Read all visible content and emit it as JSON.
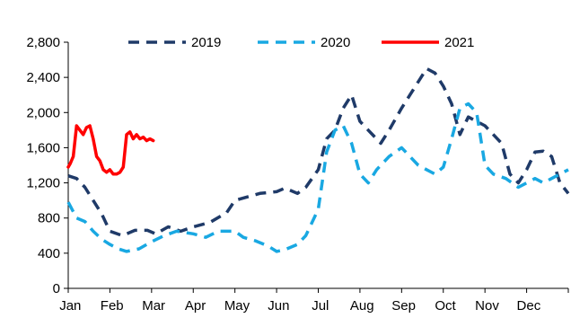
{
  "chart_data": {
    "type": "line",
    "title": "",
    "xlabel": "",
    "ylabel": "",
    "ylim": [
      0,
      2800
    ],
    "yticks": [
      0,
      400,
      800,
      1200,
      1600,
      2000,
      2400,
      2800
    ],
    "ytick_labels": [
      "0",
      "400",
      "800",
      "1,200",
      "1,600",
      "2,000",
      "2,400",
      "2,800"
    ],
    "xlim": [
      0,
      12
    ],
    "month_labels": [
      "Jan",
      "Feb",
      "Mar",
      "Apr",
      "May",
      "Jun",
      "Jul",
      "Aug",
      "Sep",
      "Oct",
      "Nov",
      "Dec"
    ],
    "grid": false,
    "legend_position": "top",
    "series": [
      {
        "name": "2019",
        "color": "#1f3a68",
        "style": "dashed",
        "x": [
          0.0,
          0.2,
          0.4,
          0.6,
          0.8,
          1.0,
          1.3,
          1.6,
          1.9,
          2.1,
          2.4,
          2.7,
          3.0,
          3.4,
          3.8,
          4.0,
          4.3,
          4.6,
          5.0,
          5.2,
          5.5,
          5.7,
          6.0,
          6.2,
          6.4,
          6.6,
          6.8,
          7.0,
          7.2,
          7.5,
          7.7,
          8.0,
          8.2,
          8.4,
          8.6,
          8.8,
          9.0,
          9.2,
          9.4,
          9.6,
          9.8,
          10.0,
          10.2,
          10.4,
          10.6,
          10.8,
          11.0,
          11.2,
          11.4,
          11.6,
          11.8,
          12.0
        ],
        "y": [
          1280,
          1250,
          1150,
          1000,
          850,
          650,
          600,
          660,
          660,
          620,
          700,
          650,
          700,
          750,
          860,
          1000,
          1040,
          1080,
          1100,
          1140,
          1080,
          1150,
          1350,
          1700,
          1800,
          2050,
          2200,
          1900,
          1800,
          1650,
          1800,
          2050,
          2200,
          2350,
          2500,
          2450,
          2300,
          2100,
          1750,
          1950,
          1900,
          1850,
          1750,
          1650,
          1300,
          1200,
          1350,
          1550,
          1560,
          1500,
          1200,
          1080
        ]
      },
      {
        "name": "2020",
        "color": "#19a8e2",
        "style": "dashed",
        "x": [
          0.0,
          0.2,
          0.4,
          0.6,
          0.8,
          1.0,
          1.2,
          1.4,
          1.7,
          2.0,
          2.3,
          2.6,
          3.0,
          3.3,
          3.6,
          4.0,
          4.2,
          4.5,
          4.8,
          5.0,
          5.2,
          5.5,
          5.7,
          6.0,
          6.2,
          6.4,
          6.6,
          6.8,
          7.0,
          7.2,
          7.4,
          7.7,
          8.0,
          8.2,
          8.4,
          8.6,
          8.8,
          9.0,
          9.2,
          9.4,
          9.6,
          9.8,
          10.0,
          10.2,
          10.5,
          10.8,
          11.0,
          11.2,
          11.4,
          11.6,
          11.8,
          12.0
        ],
        "y": [
          980,
          800,
          760,
          650,
          560,
          500,
          450,
          420,
          450,
          530,
          600,
          650,
          620,
          580,
          650,
          650,
          580,
          540,
          480,
          420,
          440,
          500,
          600,
          900,
          1550,
          1800,
          1850,
          1650,
          1300,
          1200,
          1350,
          1500,
          1600,
          1500,
          1400,
          1350,
          1300,
          1380,
          1700,
          2050,
          2100,
          2000,
          1400,
          1300,
          1250,
          1150,
          1200,
          1250,
          1200,
          1250,
          1300,
          1350
        ]
      },
      {
        "name": "2021",
        "color": "#ff0000",
        "style": "solid",
        "x": [
          0.0,
          0.05,
          0.12,
          0.2,
          0.28,
          0.36,
          0.44,
          0.52,
          0.6,
          0.68,
          0.76,
          0.84,
          0.92,
          1.0,
          1.08,
          1.16,
          1.24,
          1.32,
          1.4,
          1.48,
          1.56,
          1.64,
          1.72,
          1.8,
          1.88,
          1.96,
          2.04
        ],
        "y": [
          1380,
          1420,
          1500,
          1850,
          1800,
          1750,
          1830,
          1850,
          1700,
          1500,
          1450,
          1350,
          1320,
          1350,
          1300,
          1300,
          1320,
          1380,
          1750,
          1780,
          1700,
          1750,
          1700,
          1720,
          1680,
          1700,
          1680
        ]
      }
    ]
  }
}
